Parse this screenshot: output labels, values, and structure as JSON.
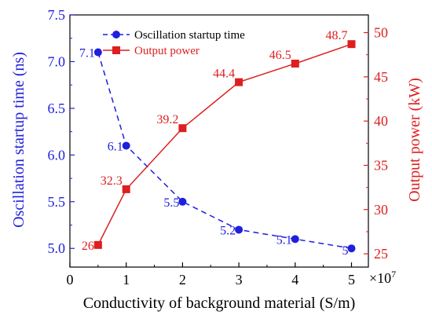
{
  "chart_data": {
    "type": "line",
    "x": [
      0.5,
      1,
      2,
      3,
      4,
      5
    ],
    "x_multiplier": "×10",
    "x_multiplier_exp": "7",
    "xlabel": "Conductivity of background material (S/m)",
    "xlim": [
      0,
      5.3
    ],
    "xticks": [
      "0",
      "1",
      "2",
      "3",
      "4",
      "5"
    ],
    "grid": false,
    "legend_position": "top-left",
    "y_left": {
      "label": "Oscillation startup time (ns)",
      "lim": [
        4.8,
        7.5
      ],
      "ticks": [
        "5.0",
        "5.5",
        "6.0",
        "6.5",
        "7.0",
        "7.5"
      ],
      "color": "#1f1fdd"
    },
    "y_right": {
      "label": "Output power (kW)",
      "lim": [
        23.5,
        52
      ],
      "ticks": [
        "25",
        "30",
        "35",
        "40",
        "45",
        "50"
      ],
      "color": "#dd1f1f"
    },
    "series": [
      {
        "name": "Oscillation startup time",
        "axis": "left",
        "color": "#1f1fdd",
        "marker": "circle",
        "line": "dashed",
        "values": [
          7.1,
          6.1,
          5.5,
          5.2,
          5.1,
          5.0
        ],
        "labels": [
          "7.1",
          "6.1",
          "5.5",
          "5.2",
          "5.1",
          "5"
        ]
      },
      {
        "name": "Output power",
        "axis": "right",
        "color": "#dd1f1f",
        "marker": "square",
        "line": "solid",
        "values": [
          26,
          32.3,
          39.2,
          44.4,
          46.5,
          48.7
        ],
        "labels": [
          "26",
          "32.3",
          "39.2",
          "44.4",
          "46.5",
          "48.7"
        ]
      }
    ]
  }
}
